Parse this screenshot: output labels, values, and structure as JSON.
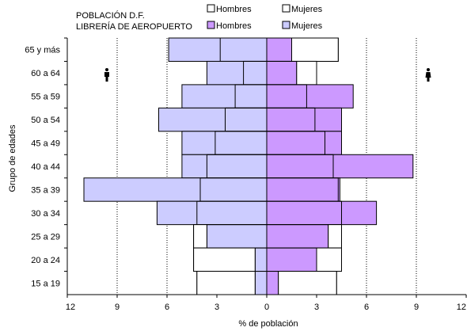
{
  "chart_data": {
    "type": "bar",
    "orientation": "horizontal",
    "title_lines": [
      "POBLACIÓN D.F.",
      "LIBRERÍA DE AEROPUERTO"
    ],
    "ylabel": "Grupo de edades",
    "xlabel": "% de población",
    "xlim": [
      -12,
      12
    ],
    "x_ticks": [
      -12,
      -9,
      -6,
      -3,
      0,
      3,
      6,
      9,
      12
    ],
    "x_tick_labels": [
      "12",
      "9",
      "6",
      "3",
      "0",
      "3",
      "6",
      "9",
      "12"
    ],
    "categories": [
      "65 y más",
      "60 a 64",
      "55 a 59",
      "50 a 54",
      "45 a 49",
      "40 a 44",
      "35 a 39",
      "30 a 34",
      "25 a 29",
      "20 a 24",
      "15 a 19"
    ],
    "grid": "vertical dotted",
    "legend": {
      "placement": "top-right",
      "entries": [
        {
          "label": "Hombres",
          "swatch": "#ffffff",
          "series": "df_hombres"
        },
        {
          "label": "Mujeres",
          "swatch": "#ffffff",
          "series": "df_mujeres"
        },
        {
          "label": "Hombres",
          "swatch": "#cc99ff",
          "series": "aero_hombres"
        },
        {
          "label": "Mujeres",
          "swatch": "#ccccff",
          "series": "aero_mujeres"
        }
      ]
    },
    "series": [
      {
        "key": "df_hombres",
        "side": "left",
        "color": "#ffffff",
        "values": [
          2.8,
          1.4,
          1.9,
          2.5,
          3.1,
          3.6,
          4.0,
          4.2,
          4.4,
          4.4,
          4.2
        ]
      },
      {
        "key": "df_mujeres",
        "side": "right",
        "color": "#ffffff",
        "values": [
          4.3,
          3.0,
          2.4,
          2.9,
          3.5,
          4.0,
          4.3,
          4.5,
          4.5,
          4.5,
          4.2
        ]
      },
      {
        "key": "aero_hombres",
        "side": "right",
        "color": "#cc99ff",
        "values": [
          1.5,
          1.8,
          5.2,
          4.5,
          4.5,
          8.8,
          4.4,
          6.6,
          3.7,
          3.0,
          0.7
        ]
      },
      {
        "key": "aero_mujeres",
        "side": "left",
        "color": "#ccccff",
        "values": [
          5.9,
          3.6,
          5.1,
          6.5,
          5.1,
          5.1,
          11.0,
          6.6,
          3.6,
          0.7,
          0.7
        ]
      }
    ],
    "icons": [
      "male-figure-icon",
      "female-figure-icon"
    ],
    "colors": {
      "grid": "#000000",
      "border": "#000000",
      "df_bar": "#ffffff",
      "aero_hombres": "#cc99ff",
      "aero_mujeres": "#ccccff"
    }
  }
}
